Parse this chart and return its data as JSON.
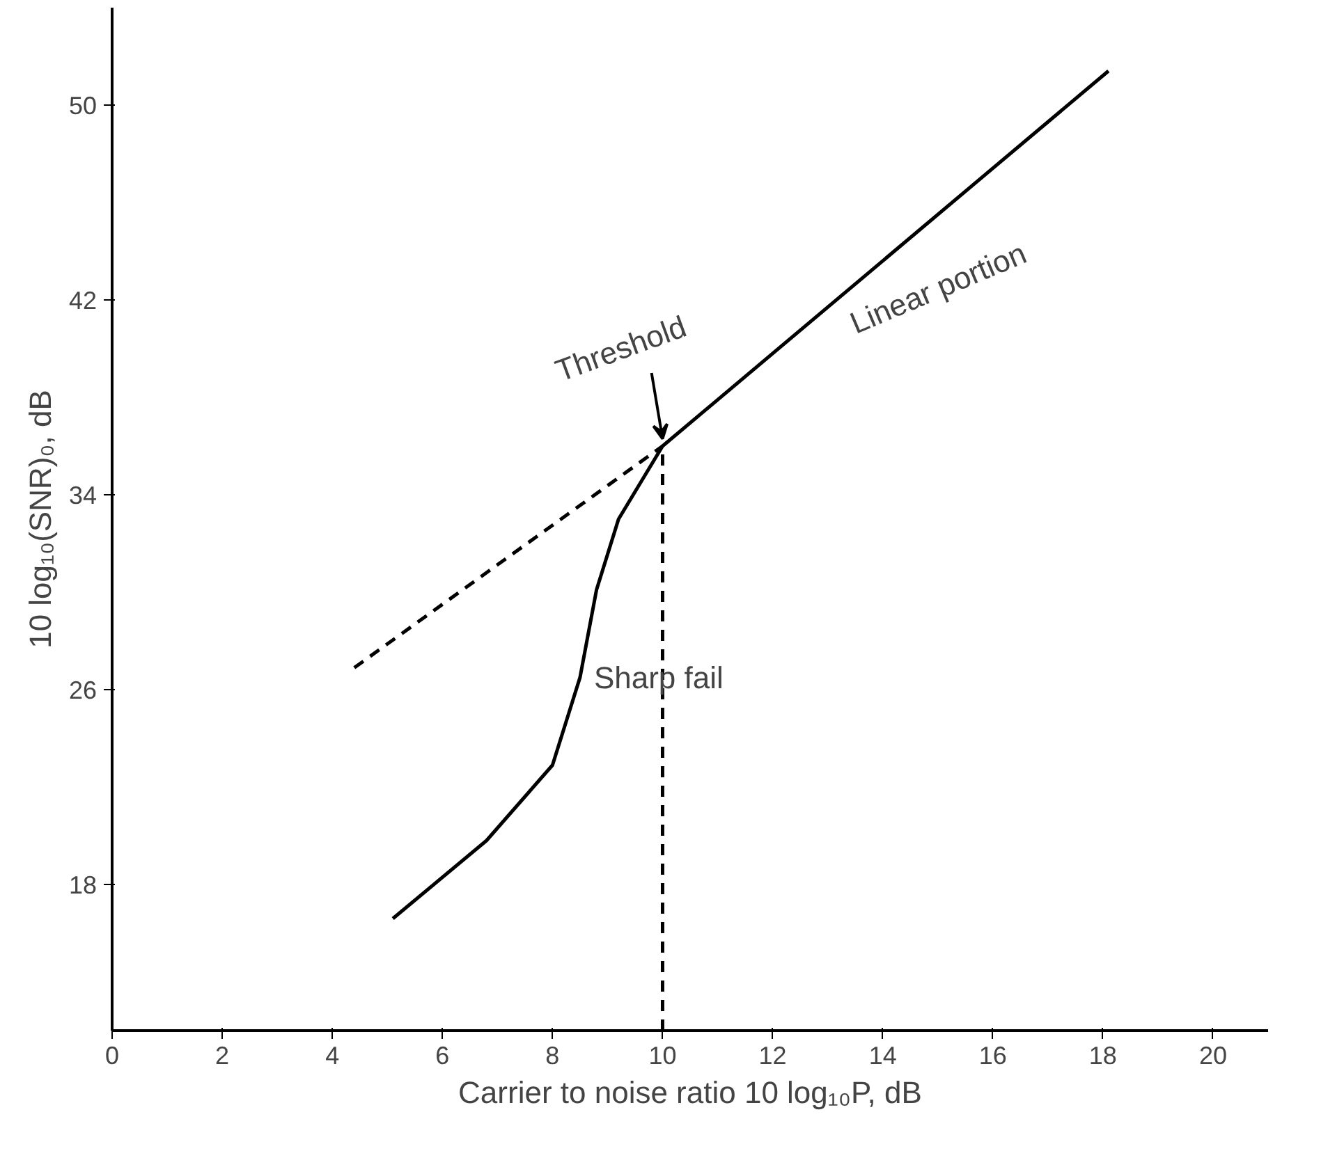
{
  "chart_data": {
    "type": "line",
    "xlabel": "Carrier to noise ratio 10 log₁₀P, dB",
    "ylabel": "10 log₁₀(SNR)₀, dB",
    "xlim": [
      0,
      21
    ],
    "ylim": [
      12,
      54
    ],
    "xticks": [
      0,
      2,
      4,
      6,
      8,
      10,
      12,
      14,
      16,
      18,
      20
    ],
    "yticks": [
      18,
      26,
      34,
      42,
      50
    ],
    "grid": false,
    "marker": "none",
    "series": [
      {
        "color": "#000000",
        "line_style": "solid",
        "x": [
          5.1,
          6.8,
          8,
          8.5,
          8.8,
          9.2,
          10,
          18.1
        ],
        "values": [
          16.6,
          19.8,
          22.9,
          26.5,
          30.1,
          33,
          36,
          51.4
        ]
      },
      {
        "color": "#000000",
        "line_style": "dashed",
        "x": [
          4.4,
          10
        ],
        "values": [
          26.9,
          36
        ]
      },
      {
        "color": "#000000",
        "line_style": "dashed",
        "x": [
          10,
          10
        ],
        "values": [
          12,
          36
        ]
      }
    ],
    "annotations": [
      {
        "text": "Threshold",
        "x": 10,
        "y": 36
      },
      {
        "text": "Sharp fail",
        "x": 8.5,
        "y": 26.5
      },
      {
        "text": "Linear portion",
        "x": 14.5,
        "y": 44.2
      }
    ]
  }
}
